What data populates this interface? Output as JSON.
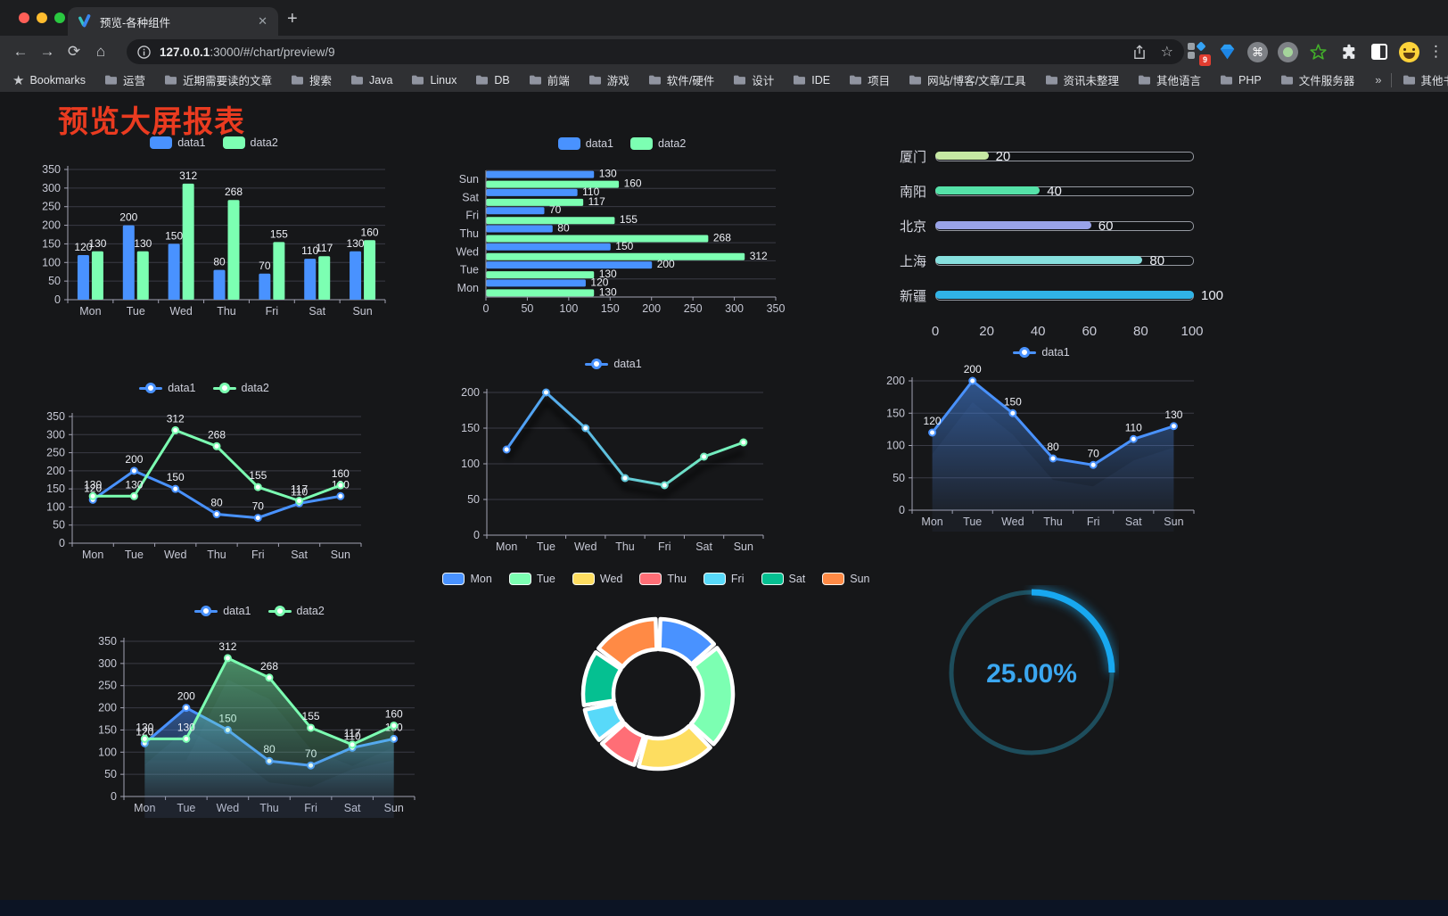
{
  "browser": {
    "traffic_lights": [
      "#ff5f57",
      "#febc2e",
      "#2ac840"
    ],
    "tab_title": "预览-各种组件",
    "tab_close": "✕",
    "new_tab": "+",
    "url_host": "127.0.0.1",
    "url_path": ":3000/#/chart/preview/9",
    "bookmarks_label": "Bookmarks",
    "bookmarks": [
      "运营",
      "近期需要读的文章",
      "搜索",
      "Java",
      "Linux",
      "DB",
      "前端",
      "游戏",
      "软件/硬件",
      "设计",
      "IDE",
      "项目",
      "网站/博客/文章/工具",
      "资讯未整理",
      "其他语言",
      "PHP",
      "文件服务器"
    ],
    "overflow_chevron": "»",
    "other_bookmarks": "其他书签",
    "extension_badge": "9",
    "menu_dots": "⋮"
  },
  "page": {
    "title": "预览大屏报表",
    "title_color": "#ea3b20",
    "background": "#161719"
  },
  "chart_data": [
    {
      "id": "bar-grouped",
      "type": "bar",
      "categories": [
        "Mon",
        "Tue",
        "Wed",
        "Thu",
        "Fri",
        "Sat",
        "Sun"
      ],
      "series": [
        {
          "name": "data1",
          "color": "#4992ff",
          "values": [
            120,
            200,
            150,
            80,
            70,
            110,
            130
          ]
        },
        {
          "name": "data2",
          "color": "#7cffb2",
          "values": [
            130,
            130,
            312,
            268,
            155,
            117,
            160
          ]
        }
      ],
      "ylim": [
        0,
        350
      ],
      "ystep": 50,
      "labels": true,
      "legend_position": "top",
      "grid": true
    },
    {
      "id": "bar-horizontal",
      "type": "bar-horizontal",
      "categories": [
        "Mon",
        "Tue",
        "Wed",
        "Thu",
        "Fri",
        "Sat",
        "Sun"
      ],
      "series": [
        {
          "name": "data1",
          "color": "#4992ff",
          "values": [
            120,
            200,
            150,
            80,
            70,
            110,
            130
          ]
        },
        {
          "name": "data2",
          "color": "#7cffb2",
          "values": [
            130,
            130,
            312,
            268,
            155,
            117,
            160
          ]
        }
      ],
      "xlim": [
        0,
        350
      ],
      "xstep": 50,
      "labels": true,
      "legend_position": "top"
    },
    {
      "id": "progress-bars",
      "type": "progress",
      "max": 100,
      "rows": [
        {
          "label": "厦门",
          "value": 20,
          "color": "#c6e8a3"
        },
        {
          "label": "南阳",
          "value": 40,
          "color": "#55e2a8"
        },
        {
          "label": "北京",
          "value": 60,
          "color": "#99a3e8"
        },
        {
          "label": "上海",
          "value": 80,
          "color": "#87e0de"
        },
        {
          "label": "新疆",
          "value": 100,
          "color": "#30b3e6"
        }
      ],
      "axis_ticks": [
        0,
        20,
        40,
        60,
        80,
        100
      ]
    },
    {
      "id": "line-two-series",
      "type": "line",
      "categories": [
        "Mon",
        "Tue",
        "Wed",
        "Thu",
        "Fri",
        "Sat",
        "Sun"
      ],
      "series": [
        {
          "name": "data1",
          "color": "#4992ff",
          "values": [
            120,
            200,
            150,
            80,
            70,
            110,
            130
          ]
        },
        {
          "name": "data2",
          "color": "#7cffb2",
          "values": [
            130,
            130,
            312,
            268,
            155,
            117,
            160
          ]
        }
      ],
      "ylim": [
        0,
        350
      ],
      "ystep": 50,
      "labels": true,
      "markers": true
    },
    {
      "id": "line-gradient",
      "type": "line",
      "categories": [
        "Mon",
        "Tue",
        "Wed",
        "Thu",
        "Fri",
        "Sat",
        "Sun"
      ],
      "series": [
        {
          "name": "data1",
          "color": "#4992ff",
          "color_end": "#7cffb2",
          "values": [
            120,
            200,
            150,
            80,
            70,
            110,
            130
          ]
        }
      ],
      "ylim": [
        0,
        200
      ],
      "ystep": 50,
      "labels": false,
      "markers": true,
      "shadow": true
    },
    {
      "id": "line-area",
      "type": "line",
      "categories": [
        "Mon",
        "Tue",
        "Wed",
        "Thu",
        "Fri",
        "Sat",
        "Sun"
      ],
      "series": [
        {
          "name": "data1",
          "color": "#4992ff",
          "values": [
            120,
            200,
            150,
            80,
            70,
            110,
            130
          ],
          "area": true
        }
      ],
      "ylim": [
        0,
        200
      ],
      "ystep": 50,
      "labels": true,
      "markers": true
    },
    {
      "id": "area-two-series",
      "type": "line",
      "categories": [
        "Mon",
        "Tue",
        "Wed",
        "Thu",
        "Fri",
        "Sat",
        "Sun"
      ],
      "series": [
        {
          "name": "data1",
          "color": "#4992ff",
          "values": [
            120,
            200,
            150,
            80,
            70,
            110,
            130
          ],
          "area": true
        },
        {
          "name": "data2",
          "color": "#7cffb2",
          "values": [
            130,
            130,
            312,
            268,
            155,
            117,
            160
          ],
          "area": true
        }
      ],
      "ylim": [
        0,
        350
      ],
      "ystep": 50,
      "labels": true,
      "markers": true
    },
    {
      "id": "donut",
      "type": "pie",
      "legend_id": "donut-legend",
      "categories": [
        "Mon",
        "Tue",
        "Wed",
        "Thu",
        "Fri",
        "Sat",
        "Sun"
      ],
      "values": [
        120,
        200,
        150,
        80,
        70,
        110,
        130
      ],
      "colors": [
        "#4992ff",
        "#7cffb2",
        "#fddd60",
        "#ff6e76",
        "#58d9f9",
        "#05c091",
        "#ff8a45"
      ],
      "inner_radius": 50,
      "outer_radius": 84,
      "border_color": "#ffffff"
    },
    {
      "id": "gauge",
      "type": "gauge",
      "value": 25,
      "label": "25.00%",
      "arc_color": "#18a8f0",
      "track_color": "#1d4d5c",
      "text_color": "#3ba7f0"
    }
  ]
}
